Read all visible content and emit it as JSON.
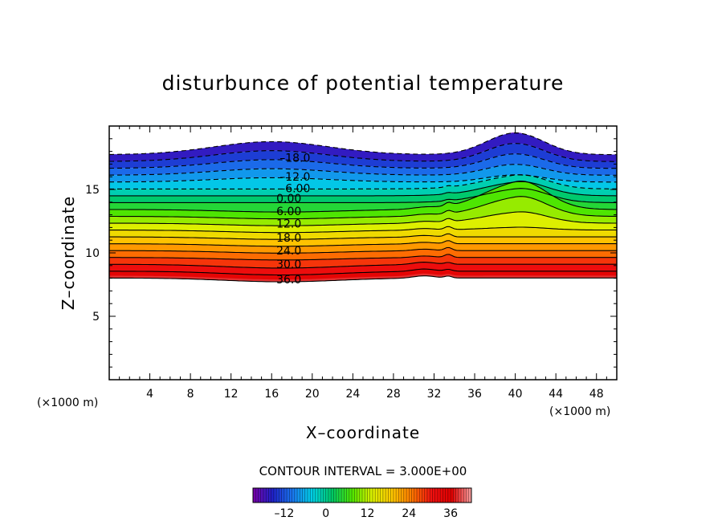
{
  "chart_data": {
    "type": "contour",
    "title": "disturbunce of potential temperature",
    "xlabel": "X–coordinate",
    "ylabel": "Z–coordinate",
    "x_unit": "(×1000 m)",
    "z_unit": "(×1000 m)",
    "xlim": [
      0,
      50
    ],
    "ylim": [
      0,
      20
    ],
    "x_ticks": [
      4,
      8,
      12,
      16,
      20,
      24,
      28,
      32,
      36,
      40,
      44,
      48
    ],
    "y_ticks": [
      5,
      10,
      15
    ],
    "contour_interval_text": "CONTOUR INTERVAL =  3.000E+00",
    "contour_interval": 3.0,
    "contour_labels": [
      {
        "text": "–18.0",
        "x": 18.3,
        "z": 17.5,
        "value": -18
      },
      {
        "text": "–12.0",
        "x": 18.3,
        "z": 16.0,
        "value": -12
      },
      {
        "text": "–6.00",
        "x": 18.3,
        "z": 15.1,
        "value": -6
      },
      {
        "text": "0.00",
        "x": 17.7,
        "z": 14.3,
        "value": 0
      },
      {
        "text": "6.00",
        "x": 17.7,
        "z": 13.3,
        "value": 6
      },
      {
        "text": "12.0",
        "x": 17.7,
        "z": 12.3,
        "value": 12
      },
      {
        "text": "18.0",
        "x": 17.7,
        "z": 11.2,
        "value": 18
      },
      {
        "text": "24.0",
        "x": 17.7,
        "z": 10.2,
        "value": 24
      },
      {
        "text": "30.0",
        "x": 17.7,
        "z": 9.1,
        "value": 30
      },
      {
        "text": "36.0",
        "x": 17.7,
        "z": 7.9,
        "value": 36
      }
    ],
    "colorbar": {
      "min": -21,
      "max": 42,
      "ticks": [
        -12,
        0,
        12,
        24,
        36
      ],
      "colors": [
        "#7a00a8",
        "#1e22c8",
        "#1a78f0",
        "#00d2e6",
        "#00c864",
        "#50e600",
        "#dcf000",
        "#ffc800",
        "#ff7800",
        "#f01010",
        "#e00000",
        "#f5a0a0"
      ]
    },
    "grid": false,
    "legend": "none"
  }
}
